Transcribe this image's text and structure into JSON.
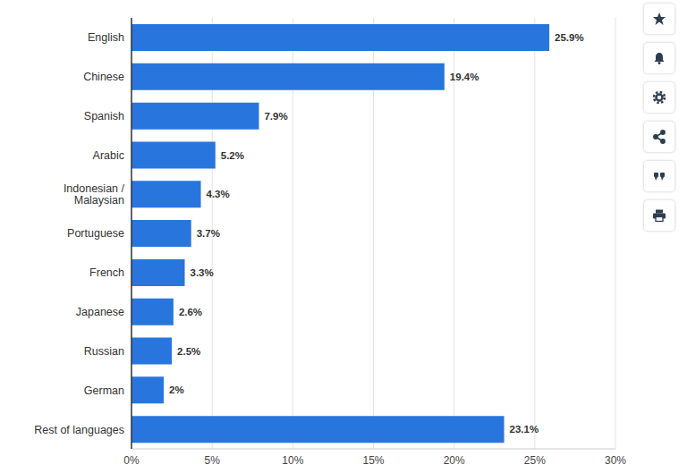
{
  "chart_data": {
    "type": "bar",
    "orientation": "horizontal",
    "categories": [
      "English",
      "Chinese",
      "Spanish",
      "Arabic",
      "Indonesian / Malaysian",
      "Portuguese",
      "French",
      "Japanese",
      "Russian",
      "German",
      "Rest of languages"
    ],
    "values": [
      25.9,
      19.4,
      7.9,
      5.2,
      4.3,
      3.7,
      3.3,
      2.6,
      2.5,
      2,
      23.1
    ],
    "value_labels": [
      "25.9%",
      "19.4%",
      "7.9%",
      "5.2%",
      "4.3%",
      "3.7%",
      "3.3%",
      "2.6%",
      "2.5%",
      "2%",
      "23.1%"
    ],
    "color": "#2876dd",
    "xlim": [
      0,
      30
    ],
    "xticks": [
      {
        "value": 0,
        "label": "0%"
      },
      {
        "value": 5,
        "label": "5%"
      },
      {
        "value": 10,
        "label": "10%"
      },
      {
        "value": 15,
        "label": "15%"
      },
      {
        "value": 20,
        "label": "20%"
      },
      {
        "value": 25,
        "label": "25%"
      },
      {
        "value": 30,
        "label": "30%"
      }
    ],
    "grid": true,
    "data_labels": true
  }
}
